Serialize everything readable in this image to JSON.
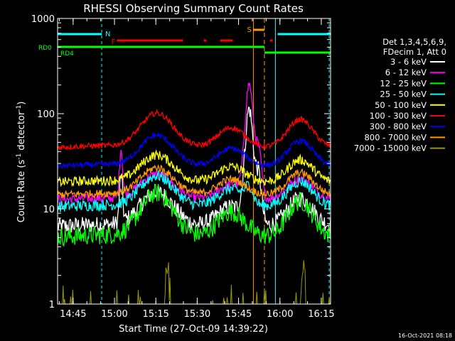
{
  "chart_data": {
    "type": "line",
    "title": "RHESSI Observing Summary Count Rates",
    "xlabel": "Start Time (27-Oct-09 14:39:22)",
    "ylabel_main": "Count Rate (s",
    "ylabel_sup1": "-1",
    "ylabel_mid": " detector",
    "ylabel_sup2": "-1",
    "ylabel_end": ")",
    "yscale": "log",
    "ylim": [
      1,
      1000
    ],
    "xlim_min": [
      0,
      99
    ],
    "x_unit": "minutes after 14:39:22",
    "x_ticks": [
      {
        "t": 5.63,
        "label": "14:45"
      },
      {
        "t": 20.63,
        "label": "15:00"
      },
      {
        "t": 35.63,
        "label": "15:15"
      },
      {
        "t": 50.63,
        "label": "15:30"
      },
      {
        "t": 65.63,
        "label": "15:45"
      },
      {
        "t": 80.63,
        "label": "16:00"
      },
      {
        "t": 95.63,
        "label": "16:15"
      }
    ],
    "y_ticks": [
      {
        "v": 1,
        "label": "1"
      },
      {
        "v": 10,
        "label": "10"
      },
      {
        "v": 100,
        "label": "100"
      },
      {
        "v": 1000,
        "label": "1000"
      }
    ],
    "legend_header": [
      "Det 1,3,4,5,6,9,",
      "FDecim 1, Att 0"
    ],
    "series": [
      {
        "name": "3 - 6 keV",
        "color": "#ffffff",
        "base": 6.5,
        "amp": 2.4,
        "noise": 0.09
      },
      {
        "name": "6 - 12 keV",
        "color": "#ff00ff",
        "base": 12.5,
        "amp": 1.9,
        "noise": 0.05
      },
      {
        "name": "12 - 25 keV",
        "color": "#00ff00",
        "base": 5.0,
        "amp": 3.1,
        "noise": 0.1
      },
      {
        "name": "25 - 50 keV",
        "color": "#00ffff",
        "base": 10.5,
        "amp": 2.2,
        "noise": 0.06
      },
      {
        "name": "50 - 100 keV",
        "color": "#ffff00",
        "base": 19,
        "amp": 2.0,
        "noise": 0.05
      },
      {
        "name": "100 - 300 keV",
        "color": "#ff0000",
        "base": 44,
        "amp": 2.4,
        "noise": 0.03
      },
      {
        "name": "300 - 800 keV",
        "color": "#0000ff",
        "base": 28,
        "amp": 2.2,
        "noise": 0.03
      },
      {
        "name": "800 - 7000 keV",
        "color": "#ff9900",
        "base": 14,
        "amp": 2.0,
        "noise": 0.04
      },
      {
        "name": "7000 - 15000 keV",
        "color": "#999900",
        "base": 0,
        "amp": 0,
        "noise": 0
      }
    ],
    "flags": {
      "N": {
        "label": "N",
        "color": "#00ffff"
      },
      "F": {
        "label": "F",
        "color": "#ff0000"
      },
      "S": {
        "label": "S",
        "color": "#ff9900"
      },
      "RD0": {
        "label": "RD0",
        "color": "#00ff00"
      },
      "RD4": {
        "label": "RD4",
        "color": "#00ff00"
      }
    },
    "legend_placement": "right",
    "grid": false
  },
  "footer": {
    "timestamp": "16-Oct-2021 08:18"
  }
}
